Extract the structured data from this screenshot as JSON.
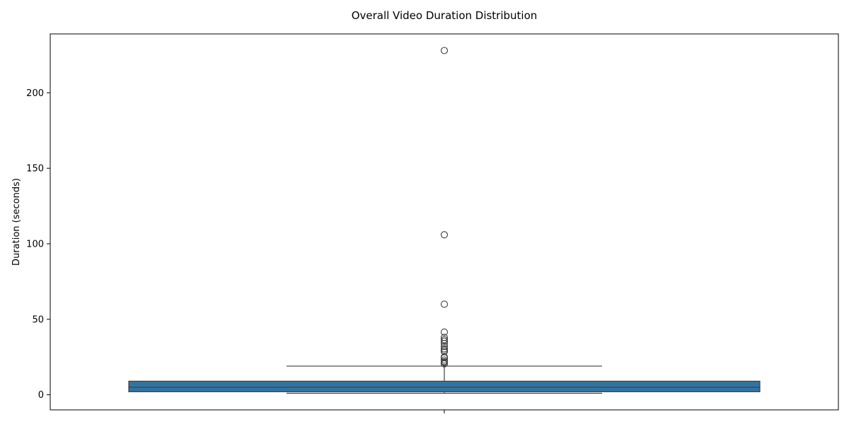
{
  "chart_data": {
    "type": "box",
    "title": "Overall Video Duration Distribution",
    "xlabel": "",
    "ylabel": "Duration (seconds)",
    "ylim": [
      -10,
      239
    ],
    "yticks": [
      0,
      50,
      100,
      150,
      200
    ],
    "grid": false,
    "legend": "none",
    "box": {
      "whisker_low": 1,
      "q1": 2,
      "median": 5,
      "q3": 9,
      "whisker_high": 19,
      "fill_color": "#3274a1",
      "line_color": "#3f3f3f"
    },
    "outliers": [
      20.5,
      21.5,
      22,
      23,
      24.5,
      25,
      28.5,
      29.5,
      30.5,
      32,
      34,
      35.5,
      36.5,
      38,
      41.5,
      60,
      106,
      228
    ]
  }
}
